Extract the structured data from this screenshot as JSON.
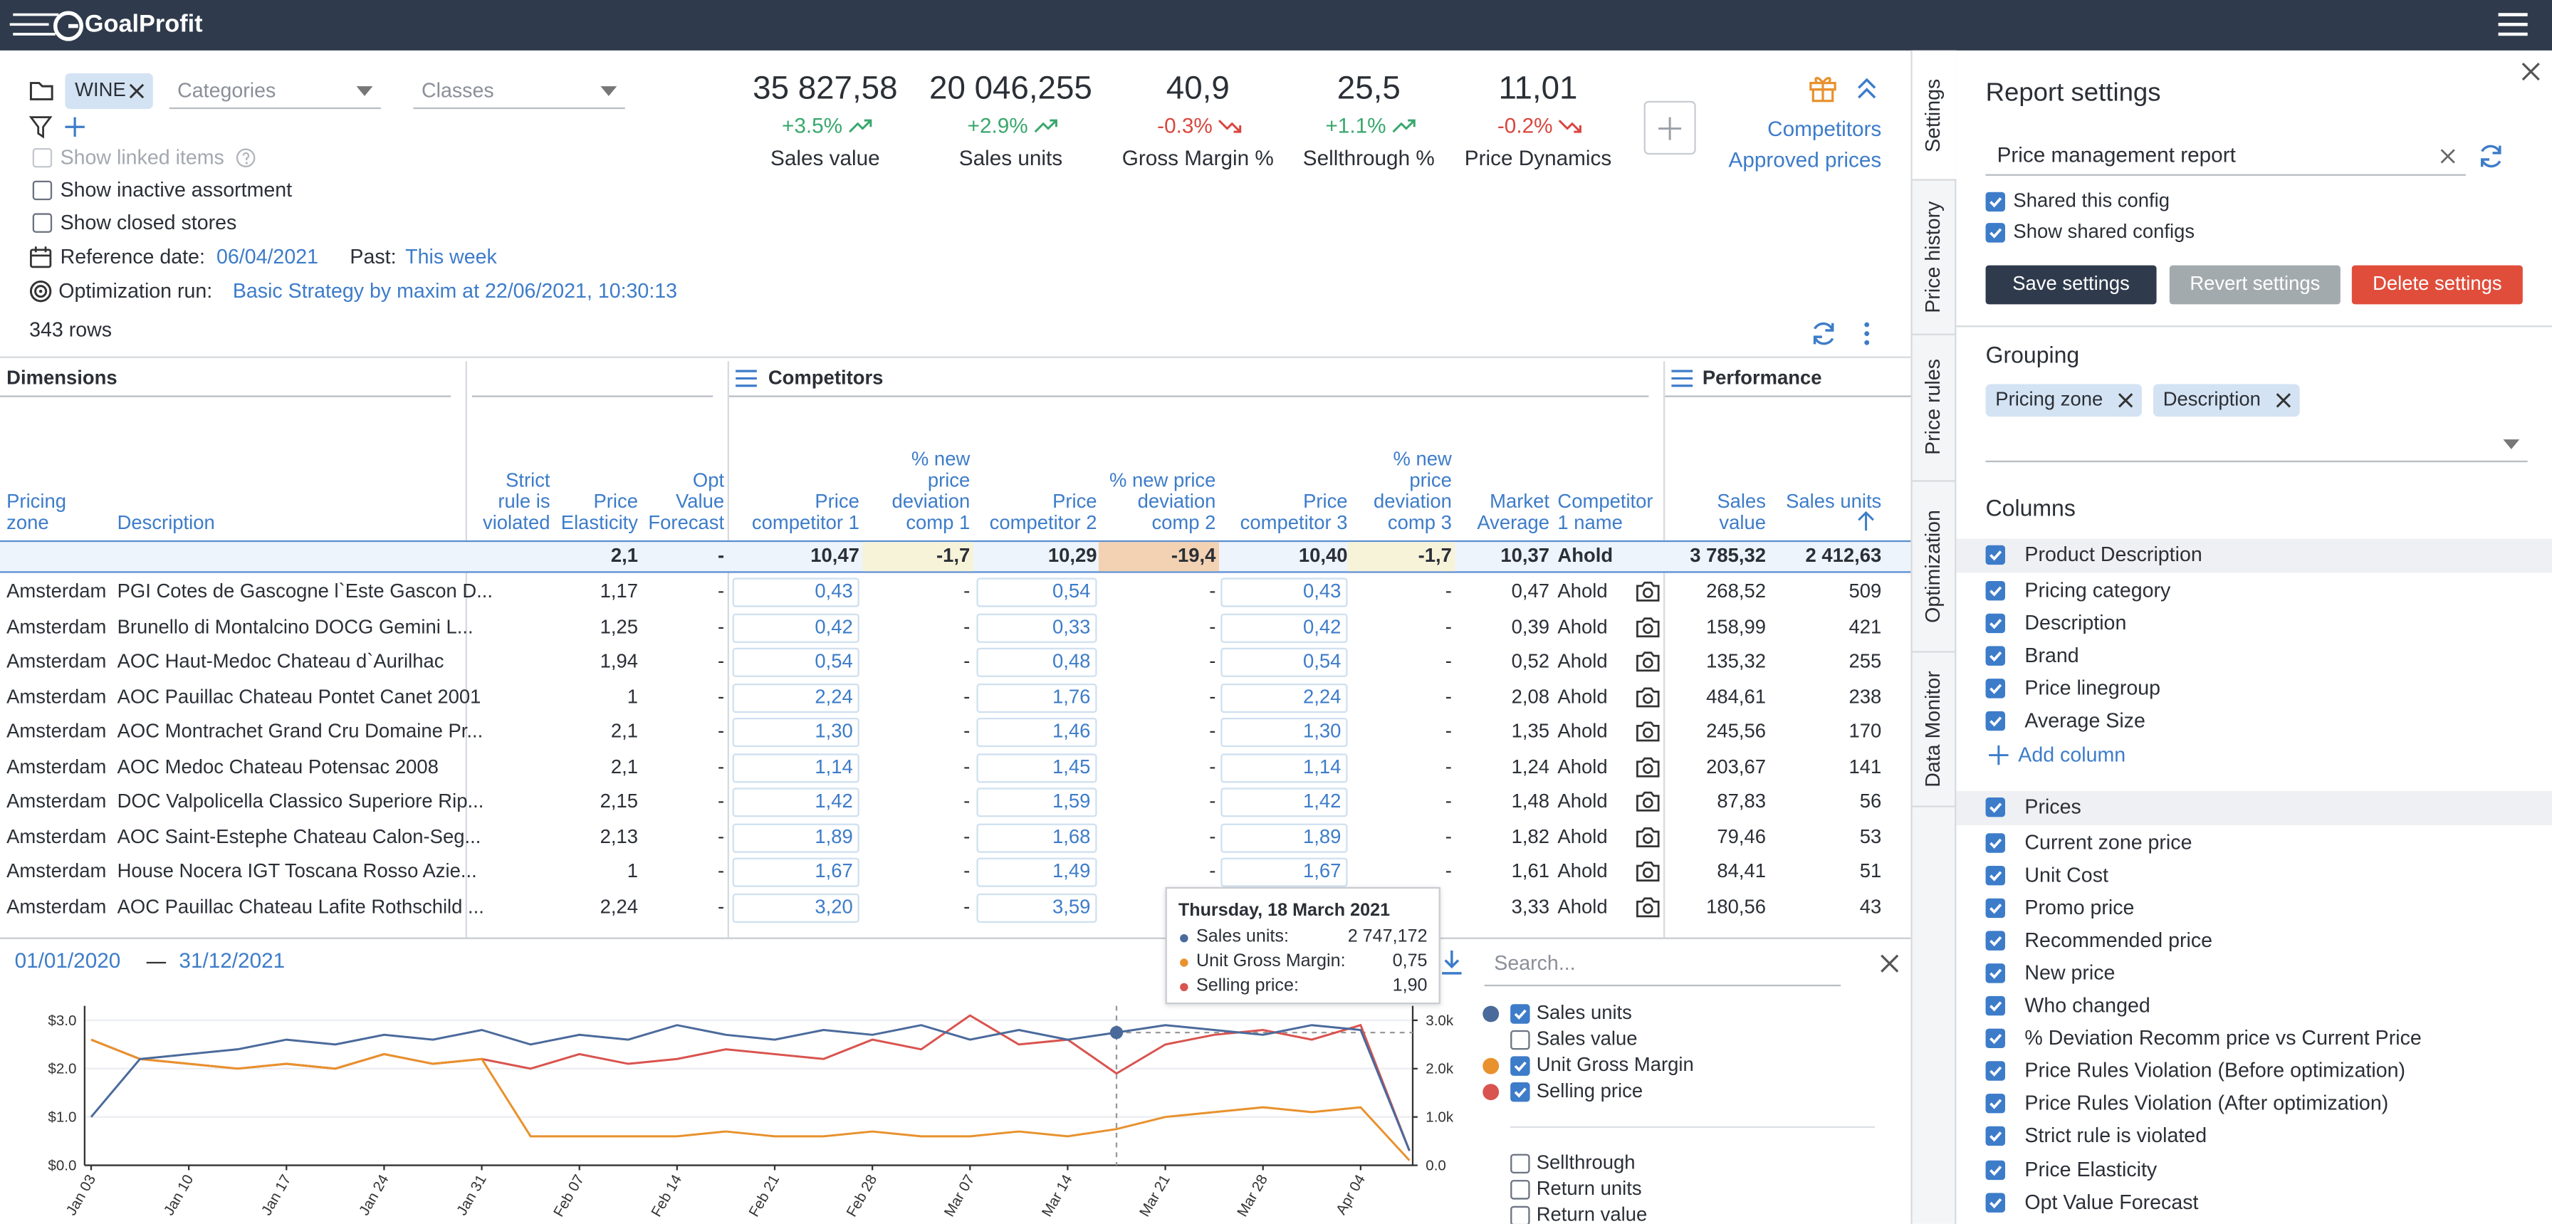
{
  "header": {
    "brand": "GoalProfit"
  },
  "filters": {
    "tag": "WINE",
    "categories_placeholder": "Categories",
    "classes_placeholder": "Classes",
    "options": [
      {
        "label": "Show linked items",
        "checked": false,
        "disabled": true
      },
      {
        "label": "Show inactive assortment",
        "checked": false,
        "disabled": false
      },
      {
        "label": "Show closed stores",
        "checked": false,
        "disabled": false
      }
    ],
    "reference_label": "Reference date:",
    "reference_date": "06/04/2021",
    "past_label": "Past:",
    "past_value": "This week",
    "optimization_label": "Optimization run:",
    "optimization_value": "Basic Strategy by maxim at 22/06/2021, 10:30:13",
    "row_count": "343 rows"
  },
  "kpis": [
    {
      "value": "35 827,58",
      "change": "+3.5%",
      "trend": "up",
      "label": "Sales value"
    },
    {
      "value": "20 046,255",
      "change": "+2.9%",
      "trend": "up",
      "label": "Sales units"
    },
    {
      "value": "40,9",
      "change": "-0.3%",
      "trend": "down",
      "label": "Gross Margin %"
    },
    {
      "value": "25,5",
      "change": "+1.1%",
      "trend": "up",
      "label": "Sellthrough %"
    },
    {
      "value": "11,01",
      "change": "-0.2%",
      "trend": "down",
      "label": "Price Dynamics"
    }
  ],
  "links": [
    "Competitors",
    "Approved prices"
  ],
  "side_tabs": [
    "Settings",
    "Price history",
    "Price rules",
    "Optimization",
    "Data Monitor"
  ],
  "table": {
    "groups": [
      "Dimensions",
      "Competitors",
      "Performance"
    ],
    "columns": [
      "Pricing zone",
      "Description",
      "Strict rule is violated",
      "Price Elasticity",
      "Opt Value Forecast",
      "Price competitor 1",
      "% new price deviation comp 1",
      "Price competitor 2",
      "% new price deviation comp 2",
      "Price competitor 3",
      "% new price deviation comp 3",
      "Market Average",
      "Competitor 1 name",
      "Sales value",
      "Sales units"
    ],
    "totals": [
      null,
      null,
      null,
      "2,1",
      "-",
      "10,47",
      "-1,7",
      "10,29",
      "-19,4",
      "10,40",
      "-1,7",
      "10,37",
      "Ahold",
      "3 785,32",
      "2 412,63"
    ],
    "rows": [
      [
        "Amsterdam",
        "PGI Cotes de Gascogne l`Este Gascon D...",
        null,
        "1,17",
        "-",
        "0,43",
        "-",
        "0,54",
        "-",
        "0,43",
        "-",
        "0,47",
        "Ahold",
        "268,52",
        "509"
      ],
      [
        "Amsterdam",
        "Brunello di Montalcino DOCG Gemini L...",
        null,
        "1,25",
        "-",
        "0,42",
        "-",
        "0,33",
        "-",
        "0,42",
        "-",
        "0,39",
        "Ahold",
        "158,99",
        "421"
      ],
      [
        "Amsterdam",
        "AOC Haut-Medoc Chateau d`Aurilhac",
        null,
        "1,94",
        "-",
        "0,54",
        "-",
        "0,48",
        "-",
        "0,54",
        "-",
        "0,52",
        "Ahold",
        "135,32",
        "255"
      ],
      [
        "Amsterdam",
        "AOC Pauillac Chateau Pontet Canet 2001",
        null,
        "1",
        "-",
        "2,24",
        "-",
        "1,76",
        "-",
        "2,24",
        "-",
        "2,08",
        "Ahold",
        "484,61",
        "238"
      ],
      [
        "Amsterdam",
        "AOC Montrachet Grand Cru Domaine Pr...",
        null,
        "2,1",
        "-",
        "1,30",
        "-",
        "1,46",
        "-",
        "1,30",
        "-",
        "1,35",
        "Ahold",
        "245,56",
        "170"
      ],
      [
        "Amsterdam",
        "AOC Medoc Chateau Potensac 2008",
        null,
        "2,1",
        "-",
        "1,14",
        "-",
        "1,45",
        "-",
        "1,14",
        "-",
        "1,24",
        "Ahold",
        "203,67",
        "141"
      ],
      [
        "Amsterdam",
        "DOC Valpolicella Classico Superiore Rip...",
        null,
        "2,15",
        "-",
        "1,42",
        "-",
        "1,59",
        "-",
        "1,42",
        "-",
        "1,48",
        "Ahold",
        "87,83",
        "56"
      ],
      [
        "Amsterdam",
        "AOC Saint-Estephe Chateau Calon-Seg...",
        null,
        "2,13",
        "-",
        "1,89",
        "-",
        "1,68",
        "-",
        "1,89",
        "-",
        "1,82",
        "Ahold",
        "79,46",
        "53"
      ],
      [
        "Amsterdam",
        "House Nocera IGT Toscana Rosso Azie...",
        null,
        "1",
        "-",
        "1,67",
        "-",
        "1,49",
        "-",
        "1,67",
        "-",
        "1,61",
        "Ahold",
        "84,41",
        "51"
      ],
      [
        "Amsterdam",
        "AOC Pauillac Chateau Lafite Rothschild ...",
        null,
        "2,24",
        "-",
        "3,20",
        "-",
        "3,59",
        null,
        null,
        null,
        "3,33",
        "Ahold",
        "180,56",
        "43"
      ]
    ]
  },
  "chart_data": {
    "type": "line",
    "date_from": "01/01/2020",
    "date_to": "31/12/2021",
    "categories": [
      "Jan 03",
      null,
      "Jan 10",
      null,
      "Jan 17",
      null,
      "Jan 24",
      null,
      "Jan 31",
      null,
      "Feb 07",
      null,
      "Feb 14",
      null,
      "Feb 21",
      null,
      "Feb 28",
      null,
      "Mar 07",
      null,
      "Mar 14",
      null,
      "Mar 21",
      null,
      "Mar 28",
      null,
      "Apr 04",
      null
    ],
    "series": [
      {
        "name": "Sales units",
        "color": "#4a6a9b",
        "axis": "y2",
        "values": [
          1000,
          2200,
          2300,
          2400,
          2600,
          2500,
          2700,
          2600,
          2800,
          2500,
          2700,
          2600,
          2900,
          2700,
          2600,
          2800,
          2700,
          2900,
          2600,
          2800,
          2600,
          2747,
          2900,
          2800,
          2700,
          2900,
          2800,
          300
        ]
      },
      {
        "name": "Unit Gross Margin",
        "color": "#e8912d",
        "values": [
          2.6,
          2.2,
          2.1,
          2.0,
          2.1,
          2.0,
          2.3,
          2.1,
          2.2,
          0.6,
          0.6,
          0.6,
          0.6,
          0.7,
          0.6,
          0.6,
          0.7,
          0.6,
          0.6,
          0.7,
          0.6,
          0.75,
          1.0,
          1.1,
          1.2,
          1.1,
          1.2,
          0.1
        ]
      },
      {
        "name": "Selling price",
        "color": "#d9534f",
        "values": [
          2.6,
          2.2,
          2.1,
          2.0,
          2.1,
          2.0,
          2.3,
          2.1,
          2.2,
          2.0,
          2.3,
          2.1,
          2.2,
          2.4,
          2.3,
          2.2,
          2.6,
          2.4,
          3.1,
          2.5,
          2.6,
          1.9,
          2.5,
          2.7,
          2.8,
          2.6,
          2.9,
          0.3
        ]
      }
    ],
    "ylim": [
      0,
      3.3
    ],
    "yticks": [
      {
        "value": 0,
        "label": "$0.0"
      },
      {
        "value": 1,
        "label": "$1.0"
      },
      {
        "value": 2,
        "label": "$2.0"
      },
      {
        "value": 3,
        "label": "$3.0"
      }
    ],
    "y2lim": [
      0,
      3300
    ],
    "y2ticks": [
      {
        "value": 0,
        "label": "0.0"
      },
      {
        "value": 1000,
        "label": "1.0k"
      },
      {
        "value": 2000,
        "label": "2.0k"
      },
      {
        "value": 3000,
        "label": "3.0k"
      }
    ],
    "grid": true,
    "tooltip": {
      "title": "Thursday, 18 March 2021",
      "rows": [
        {
          "label": "Sales units:",
          "value": "2 747,172"
        },
        {
          "label": "Unit Gross Margin:",
          "value": "0,75"
        },
        {
          "label": "Selling price:",
          "value": "1,90"
        }
      ]
    },
    "legend_search": "Search...",
    "other_metrics": [
      "Sales value",
      "Sellthrough",
      "Return units",
      "Return value"
    ]
  },
  "report_settings": {
    "title": "Report settings",
    "config_name": "Price management report",
    "options": [
      "Shared this config",
      "Show shared configs"
    ],
    "buttons": [
      "Save settings",
      "Revert settings",
      "Delete settings"
    ],
    "grouping_label": "Grouping",
    "grouping": [
      "Pricing zone",
      "Description"
    ],
    "columns_label": "Columns",
    "column_groups": [
      {
        "name": "Product Description",
        "items": [
          "Pricing category",
          "Description",
          "Brand",
          "Price linegroup",
          "Average Size"
        ]
      },
      {
        "name": "Prices",
        "items": [
          "Current zone price",
          "Unit Cost",
          "Promo price",
          "Recommended price",
          "New price",
          "Who changed",
          "% Deviation Recomm price vs Current Price",
          "Price Rules Violation (Before optimization)",
          "Price Rules Violation (After optimization)",
          "Strict rule is violated",
          "Price Elasticity",
          "Opt Value Forecast"
        ]
      }
    ],
    "add_column": "Add column"
  }
}
